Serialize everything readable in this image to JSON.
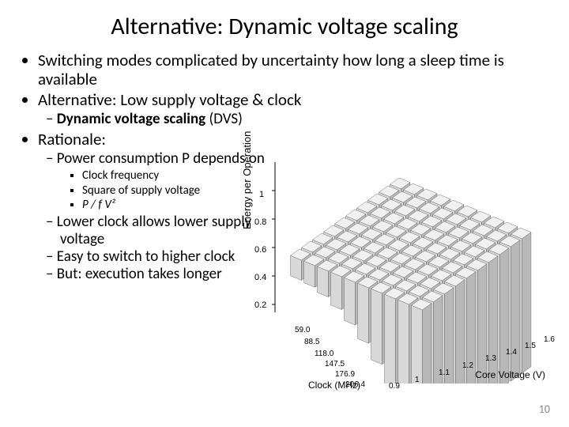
{
  "title": "Alternative: Dynamic voltage scaling",
  "bullets": {
    "b1": "Switching modes complicated by uncertainty how long a sleep time is available",
    "b2": "Alternative: Low supply voltage & clock",
    "b2_1a": "Dynamic voltage scaling",
    "b2_1b": " (DVS)",
    "b3": "Rationale:",
    "b3_1": "Power consumption P depends on",
    "b3_1_1": "Clock frequency",
    "b3_1_2": "Square of supply voltage",
    "b3_1_3": "P / f V²",
    "b3_2": "Lower clock allows lower supply voltage",
    "b3_3": "Easy to switch to higher clock",
    "b3_4": "But: execution takes longer"
  },
  "chart": {
    "type": "3d-bar",
    "y_label": "Energy per Operation",
    "x1_label": "Clock (MHz)",
    "x2_label": "Core Voltage (V)",
    "y_ticks": [
      "0.2",
      "0.4",
      "0.6",
      "0.8",
      "1"
    ],
    "x1_ticks": [
      "59.0",
      "88.5",
      "118.0",
      "147.5",
      "176.9",
      "206.4"
    ],
    "x2_ticks": [
      "0.9",
      "1",
      "1.1",
      "1.2",
      "1.3",
      "1.4",
      "1.5",
      "1.6"
    ],
    "bar_fill": "#d8d8d8",
    "bar_top": "#f0f0f0",
    "bar_side": "#b8b8b8",
    "bar_stroke": "#555",
    "grid_size": 10,
    "background": "#ffffff"
  },
  "page_number": "10"
}
